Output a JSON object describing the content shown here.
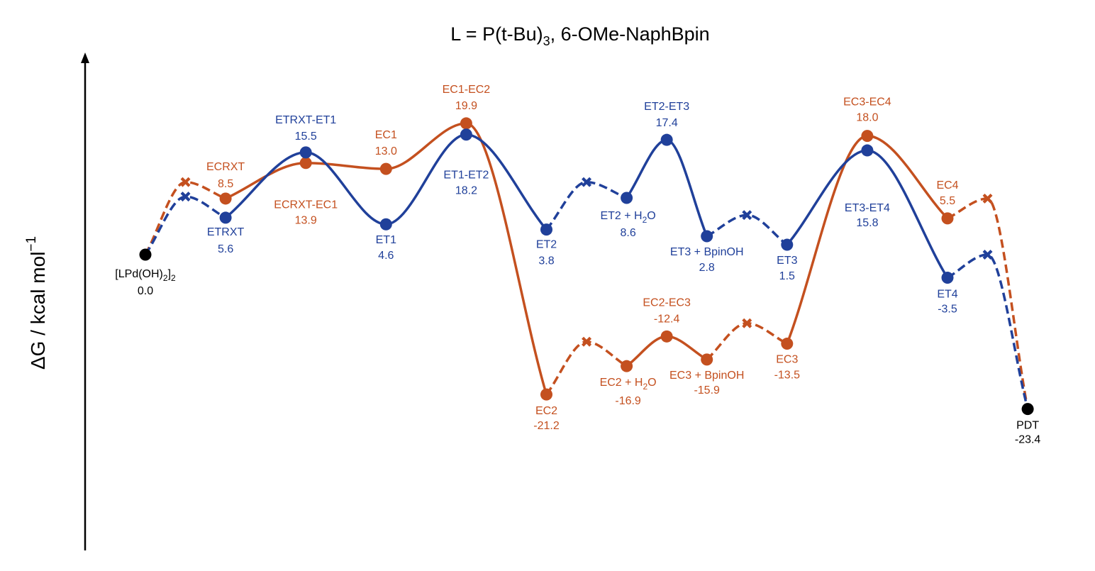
{
  "chart_data": {
    "type": "line",
    "title": "L = P(t-Bu)3, 6-OMe-NaphBpin",
    "title_main": "L = P(t-Bu)",
    "title_sub": "3",
    "title_rest": ", 6-OMe-NaphBpin",
    "ylabel": "ΔG / kcal mol−1",
    "ylabel_main": "ΔG / kcal mol",
    "ylabel_sup": "−1",
    "ylim": [
      -35,
      25
    ],
    "colors": {
      "orange": "#c4501f",
      "blue": "#20409a",
      "black": "#000000"
    },
    "nodes": [
      {
        "key": "rxt",
        "x": 1.0,
        "y": 0.0,
        "name": "[LPd(OH)2]2",
        "value": "0.0",
        "color": "black",
        "marker": "circle"
      },
      {
        "key": "ecrxt",
        "x": 2.0,
        "y": 8.5,
        "name": "ECRXT",
        "value": "8.5",
        "color": "orange",
        "marker": "circle"
      },
      {
        "key": "etrxt",
        "x": 2.0,
        "y": 5.6,
        "name": "ETRXT",
        "value": "5.6",
        "color": "blue",
        "marker": "circle"
      },
      {
        "key": "ecrxt_ec1",
        "x": 3.0,
        "y": 13.9,
        "name": "ECRXT-EC1",
        "value": "13.9",
        "color": "orange",
        "marker": "circle"
      },
      {
        "key": "etrxt_et1",
        "x": 3.0,
        "y": 15.5,
        "name": "ETRXT-ET1",
        "value": "15.5",
        "color": "blue",
        "marker": "circle"
      },
      {
        "key": "ec1",
        "x": 4.0,
        "y": 13.0,
        "name": "EC1",
        "value": "13.0",
        "color": "orange",
        "marker": "circle"
      },
      {
        "key": "et1",
        "x": 4.0,
        "y": 4.6,
        "name": "ET1",
        "value": "4.6",
        "color": "blue",
        "marker": "circle"
      },
      {
        "key": "ec1_ec2",
        "x": 5.0,
        "y": 19.9,
        "name": "EC1-EC2",
        "value": "19.9",
        "color": "orange",
        "marker": "circle"
      },
      {
        "key": "et1_et2",
        "x": 5.0,
        "y": 18.2,
        "name": "ET1-ET2",
        "value": "18.2",
        "color": "blue",
        "marker": "circle"
      },
      {
        "key": "ec2",
        "x": 6.0,
        "y": -21.2,
        "name": "EC2",
        "value": "-21.2",
        "color": "orange",
        "marker": "circle"
      },
      {
        "key": "et2",
        "x": 6.0,
        "y": 3.8,
        "name": "ET2",
        "value": "3.8",
        "color": "blue",
        "marker": "circle"
      },
      {
        "key": "ec2h2o",
        "x": 7.0,
        "y": -16.9,
        "name": "EC2 + H2O",
        "value": "-16.9",
        "color": "orange",
        "marker": "circle"
      },
      {
        "key": "et2h2o",
        "x": 7.0,
        "y": 8.6,
        "name": "ET2 + H2O",
        "value": "8.6",
        "color": "blue",
        "marker": "circle"
      },
      {
        "key": "ec2_ec3",
        "x": 7.5,
        "y": -12.4,
        "name": "EC2-EC3",
        "value": "-12.4",
        "color": "orange",
        "marker": "circle"
      },
      {
        "key": "et2_et3",
        "x": 7.5,
        "y": 17.4,
        "name": "ET2-ET3",
        "value": "17.4",
        "color": "blue",
        "marker": "circle"
      },
      {
        "key": "ec3b",
        "x": 8.0,
        "y": -15.9,
        "name": "EC3 + BpinOH",
        "value": "-15.9",
        "color": "orange",
        "marker": "circle"
      },
      {
        "key": "et3b",
        "x": 8.0,
        "y": 2.8,
        "name": "ET3 + BpinOH",
        "value": "2.8",
        "color": "blue",
        "marker": "circle"
      },
      {
        "key": "ec3",
        "x": 9.0,
        "y": -13.5,
        "name": "EC3",
        "value": "-13.5",
        "color": "orange",
        "marker": "circle"
      },
      {
        "key": "et3",
        "x": 9.0,
        "y": 1.5,
        "name": "ET3",
        "value": "1.5",
        "color": "blue",
        "marker": "circle"
      },
      {
        "key": "ec3_ec4",
        "x": 10.0,
        "y": 18.0,
        "name": "EC3-EC4",
        "value": "18.0",
        "color": "orange",
        "marker": "circle"
      },
      {
        "key": "et3_et4",
        "x": 10.0,
        "y": 15.8,
        "name": "ET3-ET4",
        "value": "15.8",
        "color": "blue",
        "marker": "circle"
      },
      {
        "key": "ec4",
        "x": 11.0,
        "y": 5.5,
        "name": "EC4",
        "value": "5.5",
        "color": "orange",
        "marker": "circle"
      },
      {
        "key": "et4",
        "x": 11.0,
        "y": -3.5,
        "name": "ET4",
        "value": "-3.5",
        "color": "blue",
        "marker": "circle"
      },
      {
        "key": "pdt",
        "x": 12.0,
        "y": -23.4,
        "name": "PDT",
        "value": "-23.4",
        "color": "black",
        "marker": "circle"
      }
    ],
    "crosses": [
      {
        "key": "xo1",
        "x": 1.5,
        "y": 11.0,
        "color": "orange"
      },
      {
        "key": "xb1",
        "x": 1.5,
        "y": 8.8,
        "color": "blue"
      },
      {
        "key": "xo2",
        "x": 6.5,
        "y": -13.2,
        "color": "orange"
      },
      {
        "key": "xb2",
        "x": 6.5,
        "y": 11.0,
        "color": "blue"
      },
      {
        "key": "xo3",
        "x": 8.5,
        "y": -10.4,
        "color": "orange"
      },
      {
        "key": "xb3",
        "x": 8.5,
        "y": 6.0,
        "color": "blue"
      },
      {
        "key": "xo4",
        "x": 11.5,
        "y": 8.5,
        "color": "orange"
      },
      {
        "key": "xb4",
        "x": 11.5,
        "y": 0.0,
        "color": "blue"
      }
    ],
    "series": [
      {
        "color": "orange",
        "segments": [
          {
            "style": "dashed",
            "points": [
              "rxt",
              "xo1",
              "ecrxt"
            ]
          },
          {
            "style": "solid",
            "points": [
              "ecrxt",
              "ecrxt_ec1",
              "ec1",
              "ec1_ec2",
              "ec2"
            ]
          },
          {
            "style": "dashed",
            "points": [
              "ec2",
              "xo2",
              "ec2h2o"
            ]
          },
          {
            "style": "solid",
            "points": [
              "ec2h2o",
              "ec2_ec3",
              "ec3b"
            ]
          },
          {
            "style": "dashed",
            "points": [
              "ec3b",
              "xo3",
              "ec3"
            ]
          },
          {
            "style": "solid",
            "points": [
              "ec3",
              "ec3_ec4",
              "ec4"
            ]
          },
          {
            "style": "dashed",
            "points": [
              "ec4",
              "xo4",
              "pdt"
            ]
          }
        ]
      },
      {
        "color": "blue",
        "segments": [
          {
            "style": "dashed",
            "points": [
              "rxt",
              "xb1",
              "etrxt"
            ]
          },
          {
            "style": "solid",
            "points": [
              "etrxt",
              "etrxt_et1",
              "et1",
              "et1_et2",
              "et2"
            ]
          },
          {
            "style": "dashed",
            "points": [
              "et2",
              "xb2",
              "et2h2o"
            ]
          },
          {
            "style": "solid",
            "points": [
              "et2h2o",
              "et2_et3",
              "et3b"
            ]
          },
          {
            "style": "dashed",
            "points": [
              "et3b",
              "xb3",
              "et3"
            ]
          },
          {
            "style": "solid",
            "points": [
              "et3",
              "et3_et4",
              "et4"
            ]
          },
          {
            "style": "dashed",
            "points": [
              "et4",
              "xb4",
              "pdt"
            ]
          }
        ]
      }
    ]
  },
  "label_layout": {
    "rxt": {
      "dx": 0,
      "dy": 32,
      "ddy": 24,
      "color": "black"
    },
    "ecrxt": {
      "dx": 0,
      "dy": -40,
      "ddy": 24,
      "color": "orange"
    },
    "etrxt": {
      "dx": 0,
      "dy": 25,
      "ddy": 24,
      "color": "blue"
    },
    "ecrxt_ec1": {
      "dx": 0,
      "dy": 64,
      "ddy": 22,
      "color": "orange"
    },
    "etrxt_et1": {
      "dx": 0,
      "dy": -41,
      "ddy": 23,
      "color": "blue"
    },
    "ec1": {
      "dx": 0,
      "dy": -43,
      "ddy": 23,
      "color": "orange"
    },
    "et1": {
      "dx": 0,
      "dy": 27,
      "ddy": 22,
      "color": "blue"
    },
    "ec1_ec2": {
      "dx": 0,
      "dy": -43,
      "ddy": 23,
      "color": "orange"
    },
    "et1_et2": {
      "dx": 0,
      "dy": 62,
      "ddy": 22,
      "color": "blue"
    },
    "ec2": {
      "dx": 0,
      "dy": 28,
      "ddy": 21,
      "color": "orange"
    },
    "et2": {
      "dx": 0,
      "dy": 26,
      "ddy": 23,
      "color": "blue"
    },
    "ec2h2o": {
      "dx": 2,
      "dy": 28,
      "ddy": 26,
      "color": "orange"
    },
    "et2h2o": {
      "dx": 2,
      "dy": 30,
      "ddy": 24,
      "color": "blue"
    },
    "ec2_ec3": {
      "dx": 0,
      "dy": -43,
      "ddy": 23,
      "color": "orange"
    },
    "et2_et3": {
      "dx": 0,
      "dy": -42,
      "ddy": 23,
      "color": "blue"
    },
    "ec3b": {
      "dx": 0,
      "dy": 27,
      "ddy": 21,
      "color": "orange"
    },
    "et3b": {
      "dx": 0,
      "dy": 27,
      "ddy": 22,
      "color": "blue"
    },
    "ec3": {
      "dx": 0,
      "dy": 27,
      "ddy": 22,
      "color": "orange"
    },
    "et3": {
      "dx": 0,
      "dy": 27,
      "ddy": 22,
      "color": "blue"
    },
    "ec3_ec4": {
      "dx": 0,
      "dy": -43,
      "ddy": 22,
      "color": "orange"
    },
    "et3_et4": {
      "dx": 0,
      "dy": 86,
      "ddy": 21,
      "color": "blue"
    },
    "ec4": {
      "dx": 0,
      "dy": -42,
      "ddy": 22,
      "color": "orange"
    },
    "et4": {
      "dx": 0,
      "dy": 28,
      "ddy": 21,
      "color": "blue"
    },
    "pdt": {
      "dx": 0,
      "dy": 28,
      "ddy": 20,
      "color": "black"
    }
  }
}
